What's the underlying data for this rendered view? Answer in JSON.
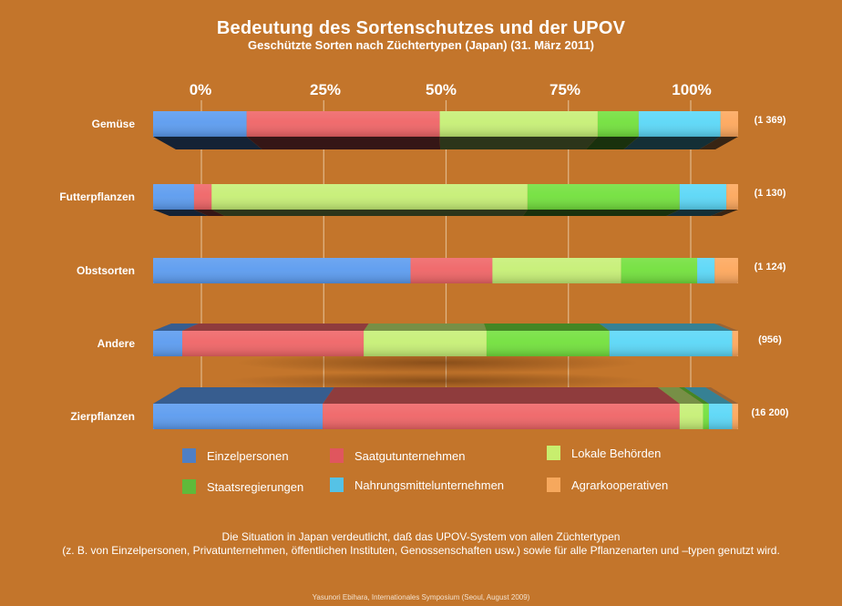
{
  "chart_data": {
    "type": "bar",
    "orientation": "horizontal",
    "stacked": "percent",
    "title": "Bedeutung des Sortenschutzes und der UPOV",
    "subtitle": "Geschützte Sorten nach Züchtertypen (Japan) (31. März 2011)",
    "xlabel": "",
    "ylabel": "",
    "xlim": [
      0,
      100
    ],
    "x_ticks": [
      "0%",
      "25%",
      "50%",
      "75%",
      "100%"
    ],
    "grid": true,
    "legend_position": "bottom",
    "categories": [
      "Gemüse",
      "Futterpflanzen",
      "Obstsorten",
      "Andere",
      "Zierpflanzen"
    ],
    "totals": [
      "(1 369)",
      "(1 130)",
      "(1 124)",
      "(956)",
      "(16 200)"
    ],
    "series": [
      {
        "name": "Einzelpersonen",
        "color": "#5b9bef",
        "values": [
          16,
          7,
          44,
          5,
          29
        ]
      },
      {
        "name": "Saatgutunternehmen",
        "color": "#ef6466",
        "values": [
          33,
          3,
          14,
          31,
          61
        ]
      },
      {
        "name": "Lokale Behörden",
        "color": "#c6ef75",
        "values": [
          27,
          54,
          22,
          21,
          4
        ]
      },
      {
        "name": "Staatsregierungen",
        "color": "#72e03c",
        "values": [
          7,
          26,
          13,
          21,
          1
        ]
      },
      {
        "name": "Nahrungsmittelunternehmen",
        "color": "#5ad7f7",
        "values": [
          14,
          8,
          3,
          21,
          4
        ]
      },
      {
        "name": "Agrarkooperativen",
        "color": "#fda75c",
        "values": [
          3,
          2,
          4,
          1,
          1
        ]
      }
    ],
    "legend_swatch_colors": [
      "#4f7fc4",
      "#e0565e",
      "#c8ee6e",
      "#5fba3a",
      "#55c2e6",
      "#f6a85d"
    ]
  },
  "footer": {
    "note_line1": "Die Situation in Japan verdeutlicht, daß das UPOV-System von allen Züchtertypen",
    "note_line2": "(z. B. von Einzelpersonen, Privatunternehmen, öffentlichen Instituten, Genossenschaften usw.) sowie für alle Pflanzenarten und –typen genutzt wird.",
    "credit": "Yasunori Ebihara, Internationales Symposium (Seoul, August 2009)"
  }
}
